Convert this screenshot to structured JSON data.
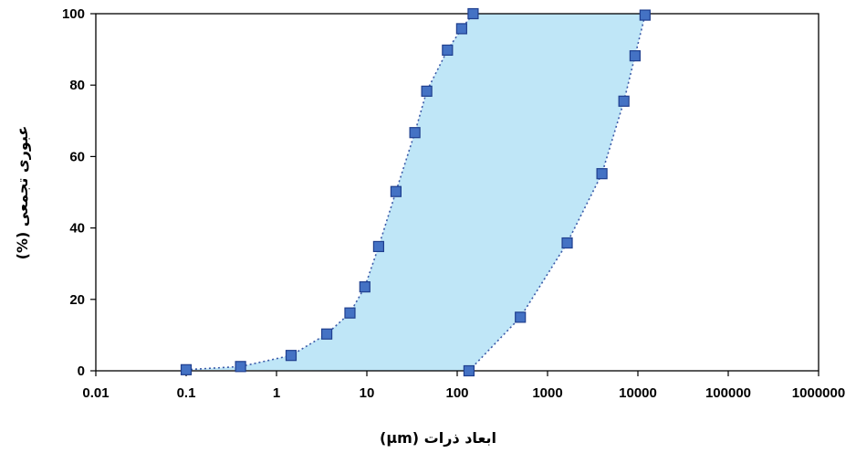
{
  "chart_data": {
    "type": "scatter",
    "title": "",
    "xlabel": "ابعاد ذرات (µm)",
    "ylabel": "عبوری تجمعی (%)",
    "xscale": "log",
    "xlim": [
      0.01,
      1000000
    ],
    "ylim": [
      0,
      100
    ],
    "x_ticks": [
      0.01,
      0.1,
      1,
      10,
      100,
      1000,
      10000,
      100000,
      1000000
    ],
    "x_tick_labels": [
      "0.01",
      "0.1",
      "1",
      "10",
      "100",
      "1000",
      "10000",
      "100000",
      "1000000"
    ],
    "y_ticks": [
      0,
      20,
      40,
      60,
      80,
      100
    ],
    "y_tick_labels": [
      "0",
      "20",
      "40",
      "60",
      "80",
      "100"
    ],
    "grid": false,
    "legend": "none",
    "fill_between_series": true,
    "series": [
      {
        "x": [
          0.1,
          0.4,
          1.45,
          3.6,
          6.5,
          9.5,
          13.5,
          21,
          34,
          46,
          78,
          112,
          150
        ],
        "y": [
          0.3,
          1.2,
          4.3,
          10.3,
          16.2,
          23.5,
          34.8,
          50.2,
          66.7,
          78.3,
          89.8,
          95.8,
          100
        ]
      },
      {
        "x": [
          135,
          500,
          1650,
          4000,
          7000,
          9300,
          12000
        ],
        "y": [
          0,
          15,
          35.8,
          55.2,
          75.5,
          88.2,
          99.6
        ]
      }
    ],
    "colors": {
      "fill": "#bfe6f7",
      "marker_fill": "#4472c4",
      "marker_stroke": "#1f3f8f",
      "line": "#3b5aa8",
      "axis": "#000000"
    }
  }
}
